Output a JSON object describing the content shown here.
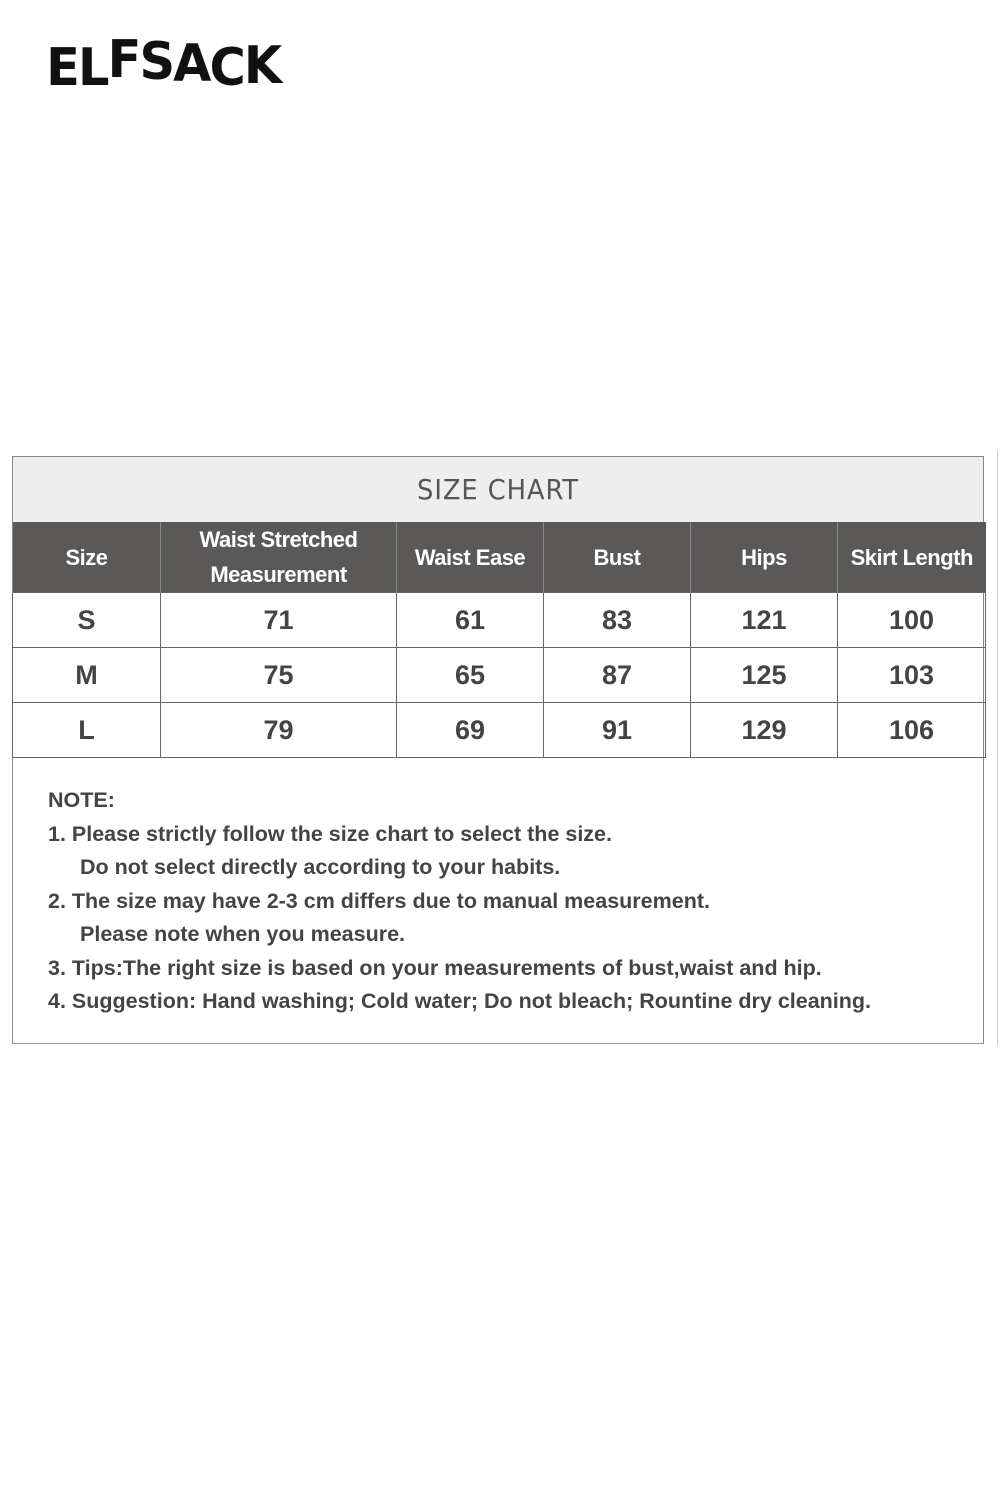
{
  "brand": {
    "logo_text": "ELFSACK"
  },
  "size_chart": {
    "title": "SIZE CHART",
    "columns": [
      "Size",
      "Waist Stretched Measurement",
      "Waist Ease",
      "Bust",
      "Hips",
      "Skirt Length"
    ],
    "rows": [
      [
        "S",
        "71",
        "61",
        "83",
        "121",
        "100"
      ],
      [
        "M",
        "75",
        "65",
        "87",
        "125",
        "103"
      ],
      [
        "L",
        "79",
        "69",
        "91",
        "129",
        "106"
      ]
    ]
  },
  "notes": {
    "heading": "NOTE:",
    "lines": [
      "1. Please strictly follow the size chart to select the size.",
      "Do not select directly according to your habits.",
      "2. The size may have 2-3 cm differs due to manual measurement.",
      "Please note when you measure.",
      "3. Tips:The right size is based on your measurements of bust,waist and hip.",
      "4. Suggestion: Hand washing; Cold water; Do not bleach; Rountine dry cleaning."
    ]
  }
}
